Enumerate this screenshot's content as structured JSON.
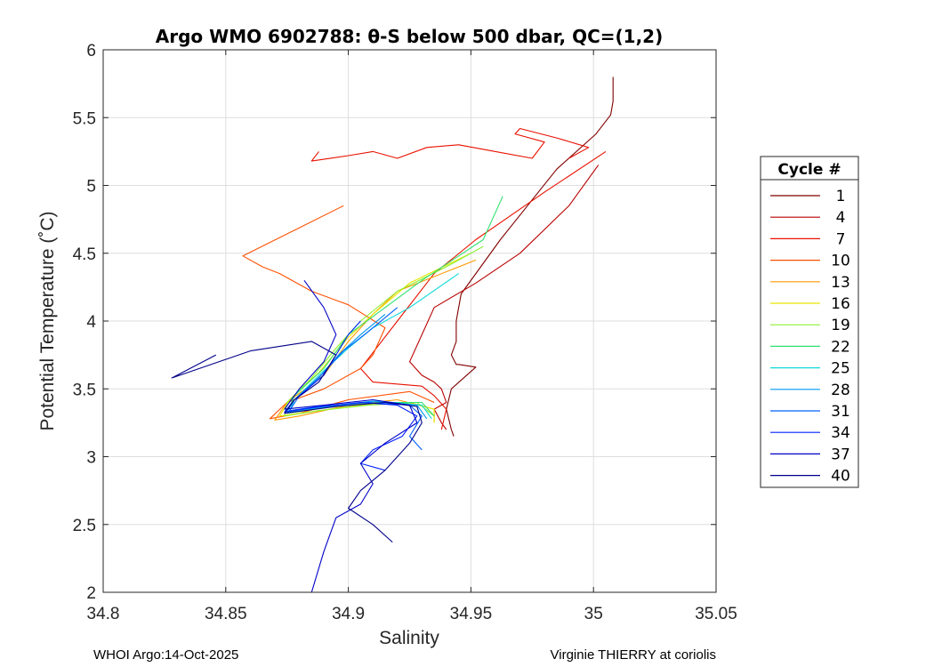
{
  "chart_data": {
    "type": "line",
    "title": "Argo WMO 6902788: θ-S below 500 dbar,  QC=(1,2)",
    "xlabel": "Salinity",
    "ylabel": "Potential Temperature (˚C)",
    "xlim": [
      34.8,
      35.05
    ],
    "ylim": [
      2,
      6
    ],
    "xticks": [
      34.8,
      34.85,
      34.9,
      34.95,
      35,
      35.05
    ],
    "xtick_labels": [
      "34.8",
      "34.85",
      "34.9",
      "34.95",
      "35",
      "35.05"
    ],
    "yticks": [
      2,
      2.5,
      3,
      3.5,
      4,
      4.5,
      5,
      5.5,
      6
    ],
    "ytick_labels": [
      "2",
      "2.5",
      "3",
      "3.5",
      "4",
      "4.5",
      "5",
      "5.5",
      "6"
    ],
    "grid": true,
    "legend": {
      "title": "Cycle #",
      "placement": "right-outside",
      "entries": [
        {
          "label": "1",
          "color": "#800000"
        },
        {
          "label": "4",
          "color": "#b80000"
        },
        {
          "label": "7",
          "color": "#e81000"
        },
        {
          "label": "10",
          "color": "#ff5000"
        },
        {
          "label": "13",
          "color": "#ff9a00"
        },
        {
          "label": "16",
          "color": "#e6e600"
        },
        {
          "label": "19",
          "color": "#8cf030"
        },
        {
          "label": "22",
          "color": "#30e070"
        },
        {
          "label": "25",
          "color": "#10d8d8"
        },
        {
          "label": "28",
          "color": "#0098f0"
        },
        {
          "label": "31",
          "color": "#0060ff"
        },
        {
          "label": "34",
          "color": "#0020ff"
        },
        {
          "label": "37",
          "color": "#0000c8"
        },
        {
          "label": "40",
          "color": "#00008a"
        }
      ]
    },
    "series": [
      {
        "name": "1",
        "color": "#800000",
        "x": [
          35.008,
          35.008,
          35.007,
          35.001,
          34.985,
          34.962,
          34.946,
          34.944,
          34.944,
          34.942,
          34.944,
          34.945,
          34.952,
          34.942,
          34.94,
          34.942,
          34.943
        ],
        "y": [
          5.8,
          5.62,
          5.52,
          5.38,
          5.12,
          4.6,
          4.2,
          4.0,
          3.85,
          3.75,
          3.68,
          3.68,
          3.66,
          3.5,
          3.35,
          3.2,
          3.15
        ]
      },
      {
        "name": "4",
        "color": "#b80000",
        "x": [
          35.002,
          34.99,
          34.97,
          34.952,
          34.935,
          34.925,
          34.93,
          34.935,
          34.938,
          34.94,
          34.935,
          34.938,
          34.94
        ],
        "y": [
          5.15,
          4.85,
          4.5,
          4.28,
          4.1,
          3.7,
          3.6,
          3.55,
          3.5,
          3.4,
          3.35,
          3.25,
          3.2
        ]
      },
      {
        "name": "7",
        "color": "#e81000",
        "x": [
          35.005,
          34.98,
          34.952,
          34.935,
          34.92,
          34.905,
          34.91,
          34.93,
          34.935,
          34.94,
          34.938
        ],
        "y": [
          5.25,
          4.95,
          4.6,
          4.35,
          4.0,
          3.65,
          3.55,
          3.52,
          3.45,
          3.35,
          3.2
        ]
      },
      {
        "name": "10",
        "color": "#ff5000",
        "x": [
          34.898,
          34.857,
          34.865,
          34.872,
          34.885,
          34.9,
          34.915,
          34.91,
          34.905,
          34.89,
          34.875,
          34.868,
          34.88,
          34.9,
          34.925,
          34.935
        ],
        "y": [
          4.85,
          4.48,
          4.4,
          4.35,
          4.22,
          4.12,
          3.95,
          3.75,
          3.65,
          3.5,
          3.4,
          3.28,
          3.32,
          3.42,
          3.48,
          3.4
        ]
      },
      {
        "name": "13",
        "color": "#ff9a00",
        "x": [
          34.952,
          34.92,
          34.91,
          34.9,
          34.89,
          34.875,
          34.87,
          34.88,
          34.9,
          34.92,
          34.935,
          34.935
        ],
        "y": [
          4.45,
          4.22,
          4.05,
          3.85,
          3.6,
          3.4,
          3.27,
          3.3,
          3.38,
          3.42,
          3.35,
          3.25
        ]
      },
      {
        "name": "16",
        "color": "#e6e600",
        "x": [
          34.95,
          34.925,
          34.91,
          34.9,
          34.888,
          34.876,
          34.872,
          34.884,
          34.905,
          34.925,
          34.935,
          34.935
        ],
        "y": [
          4.5,
          4.28,
          4.05,
          3.88,
          3.62,
          3.42,
          3.3,
          3.33,
          3.38,
          3.4,
          3.35,
          3.25
        ]
      },
      {
        "name": "19",
        "color": "#8cf030",
        "x": [
          34.955,
          34.94,
          34.92,
          34.905,
          34.895,
          34.885,
          34.875,
          34.874,
          34.888,
          34.908,
          34.928,
          34.935
        ],
        "y": [
          4.55,
          4.4,
          4.22,
          4.0,
          3.8,
          3.58,
          3.4,
          3.3,
          3.34,
          3.38,
          3.4,
          3.3
        ]
      },
      {
        "name": "22",
        "color": "#30e070",
        "x": [
          34.963,
          34.955,
          34.93,
          34.915,
          34.9,
          34.89,
          34.878,
          34.875,
          34.89,
          34.912,
          34.93,
          34.935
        ],
        "y": [
          4.92,
          4.6,
          4.3,
          4.1,
          3.9,
          3.65,
          3.45,
          3.32,
          3.36,
          3.4,
          3.4,
          3.3
        ]
      },
      {
        "name": "25",
        "color": "#10d8d8",
        "x": [
          34.945,
          34.925,
          34.91,
          34.9,
          34.888,
          34.878,
          34.876,
          34.892,
          34.912,
          34.93,
          34.934
        ],
        "y": [
          4.35,
          4.1,
          3.95,
          3.8,
          3.6,
          3.42,
          3.33,
          3.37,
          3.41,
          3.38,
          3.28
        ]
      },
      {
        "name": "28",
        "color": "#0098f0",
        "x": [
          34.915,
          34.905,
          34.896,
          34.888,
          34.878,
          34.875,
          34.89,
          34.91,
          34.928,
          34.932
        ],
        "y": [
          4.05,
          3.9,
          3.75,
          3.58,
          3.42,
          3.33,
          3.37,
          3.41,
          3.38,
          3.28
        ]
      },
      {
        "name": "31",
        "color": "#0060ff",
        "x": [
          34.92,
          34.908,
          34.898,
          34.89,
          34.88,
          34.876,
          34.888,
          34.908,
          34.925,
          34.93,
          34.925,
          34.93
        ],
        "y": [
          4.1,
          3.92,
          3.78,
          3.62,
          3.45,
          3.34,
          3.37,
          3.4,
          3.38,
          3.3,
          3.15,
          3.05
        ]
      },
      {
        "name": "34",
        "color": "#0020ff",
        "x": [
          34.905,
          34.9,
          34.895,
          34.89,
          34.878,
          34.874,
          34.885,
          34.905,
          34.92,
          34.928,
          34.922,
          34.91,
          34.905,
          34.915
        ],
        "y": [
          4.0,
          3.9,
          3.75,
          3.6,
          3.42,
          3.33,
          3.36,
          3.4,
          3.38,
          3.3,
          3.15,
          3.05,
          2.95,
          2.9
        ]
      },
      {
        "name": "37",
        "color": "#0000c8",
        "x": [
          34.882,
          34.89,
          34.895,
          34.89,
          34.88,
          34.874,
          34.89,
          34.91,
          34.925,
          34.928,
          34.915,
          34.905,
          34.91,
          34.905,
          34.895,
          34.89,
          34.885
        ],
        "y": [
          4.3,
          4.1,
          3.9,
          3.7,
          3.5,
          3.35,
          3.38,
          3.42,
          3.38,
          3.25,
          3.1,
          2.95,
          2.8,
          2.65,
          2.55,
          2.3,
          2.0
        ]
      },
      {
        "name": "40",
        "color": "#00008a",
        "x": [
          34.846,
          34.828,
          34.86,
          34.885,
          34.895,
          34.888,
          34.878,
          34.874,
          34.895,
          34.915,
          34.928,
          34.93,
          34.925,
          34.915,
          34.905,
          34.9,
          34.91,
          34.918
        ],
        "y": [
          3.75,
          3.58,
          3.78,
          3.85,
          3.75,
          3.55,
          3.42,
          3.32,
          3.37,
          3.4,
          3.37,
          3.25,
          3.1,
          2.9,
          2.75,
          2.62,
          2.5,
          2.37
        ]
      },
      {
        "name": "",
        "color": "#e81000",
        "x": [
          34.888,
          34.885,
          34.9,
          34.91,
          34.92,
          34.932,
          34.945,
          34.96,
          34.975,
          34.98,
          34.968,
          34.97,
          34.985,
          34.998,
          34.99
        ],
        "y": [
          5.25,
          5.18,
          5.22,
          5.25,
          5.2,
          5.28,
          5.3,
          5.25,
          5.2,
          5.32,
          5.38,
          5.42,
          5.35,
          5.28,
          5.2
        ]
      }
    ]
  },
  "footer": {
    "left": "WHOI Argo:14-Oct-2025",
    "right": "Virginie THIERRY at coriolis"
  }
}
